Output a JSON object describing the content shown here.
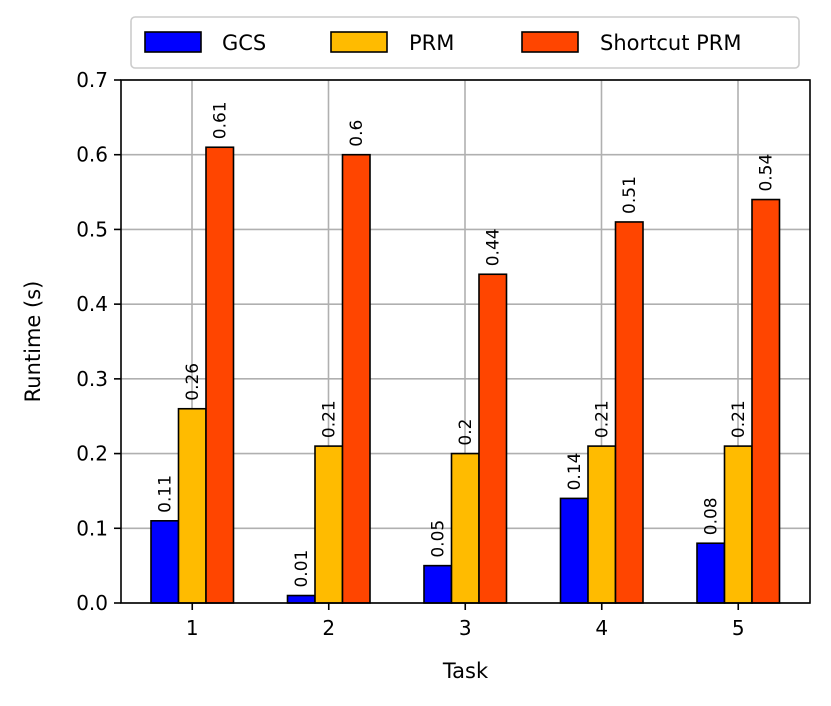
{
  "chart_data": {
    "type": "bar",
    "categories": [
      "1",
      "2",
      "3",
      "4",
      "5"
    ],
    "series": [
      {
        "name": "GCS",
        "values": [
          0.11,
          0.01,
          0.05,
          0.14,
          0.08
        ],
        "color": "#0000ff"
      },
      {
        "name": "PRM",
        "values": [
          0.26,
          0.21,
          0.2,
          0.21,
          0.21
        ],
        "color": "#ffbb00"
      },
      {
        "name": "Shortcut PRM",
        "values": [
          0.61,
          0.6,
          0.44,
          0.51,
          0.54
        ],
        "color": "#ff4500"
      }
    ],
    "data_labels": [
      [
        "0.11",
        "0.01",
        "0.05",
        "0.14",
        "0.08"
      ],
      [
        "0.26",
        "0.21",
        "0.2",
        "0.21",
        "0.21"
      ],
      [
        "0.61",
        "0.6",
        "0.44",
        "0.51",
        "0.54"
      ]
    ],
    "yticks": [
      "0.0",
      "0.1",
      "0.2",
      "0.3",
      "0.4",
      "0.5",
      "0.6",
      "0.7"
    ],
    "xlabel": "Task",
    "ylabel": "Runtime (s)",
    "ylim": [
      0,
      0.7
    ],
    "grid": true,
    "legend_position": "top"
  }
}
